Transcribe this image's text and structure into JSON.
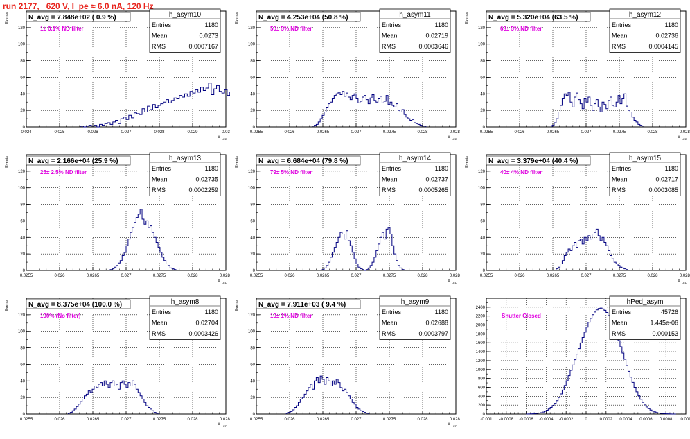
{
  "page": {
    "title": "run 2177,   620 V, I_pe ≈ 6.0 nA, 120 Hz"
  },
  "colors": {
    "title": "#e8231c",
    "histogram": "#000080",
    "annotation": "#e000e0",
    "grid": "#000000"
  },
  "chart_data": [
    {
      "type": "bar",
      "name": "h_asym10",
      "header": "N_avg = 7.848e+02 ( 0.9 %)",
      "annotation": "1± 0.1% ND filter",
      "stats": [
        [
          "Entries",
          "1180"
        ],
        [
          "Mean",
          "0.0273"
        ],
        [
          "RMS",
          "0.0007167"
        ]
      ],
      "ylabel": "Events",
      "xlabel": "A",
      "xlabel_sub": "LED",
      "xlim": [
        0.024,
        0.03
      ],
      "ylim": [
        0,
        140
      ],
      "xticks": [
        0.024,
        0.025,
        0.026,
        0.027,
        0.028,
        0.029,
        0.03
      ],
      "xticklabels": [
        "0.024",
        "0.025",
        "0.026",
        "0.027",
        "0.028",
        "0.029",
        "0.03"
      ],
      "yticks": [
        0,
        20,
        40,
        60,
        80,
        100,
        120
      ],
      "yticklabels": [
        "0",
        "20",
        "40",
        "60",
        "80",
        "100",
        "120"
      ],
      "bins": {
        "start": 0.02564,
        "step": 8e-05,
        "counts": [
          1,
          0,
          1,
          2,
          1,
          2,
          0,
          3,
          2,
          4,
          5,
          3,
          6,
          8,
          4,
          10,
          12,
          9,
          14,
          11,
          17,
          16,
          15,
          22,
          18,
          25,
          21,
          27,
          23,
          26,
          28,
          30,
          33,
          29,
          32,
          35,
          34,
          38,
          36,
          40,
          37,
          43,
          41,
          45,
          42,
          48,
          44,
          47,
          53,
          39,
          46,
          50,
          43,
          41,
          45,
          38,
          42,
          40,
          36,
          39,
          33,
          35,
          30,
          32,
          28,
          26,
          27,
          29,
          22,
          24,
          20,
          18,
          21,
          16,
          14,
          15,
          12,
          10,
          8,
          9,
          6,
          5,
          4,
          3,
          2,
          2,
          1,
          1
        ]
      }
    },
    {
      "type": "bar",
      "name": "h_asym11",
      "header": "N_avg = 4.253e+04 (50.8 %)",
      "annotation": "50± 5% ND filter",
      "stats": [
        [
          "Entries",
          "1180"
        ],
        [
          "Mean",
          "0.02719"
        ],
        [
          "RMS",
          "0.0003646"
        ]
      ],
      "ylabel": "Events",
      "xlabel": "A",
      "xlabel_sub": "LED",
      "xlim": [
        0.0255,
        0.0285
      ],
      "ylim": [
        0,
        140
      ],
      "xticks": [
        0.0255,
        0.026,
        0.0265,
        0.027,
        0.0275,
        0.028,
        0.0285
      ],
      "xticklabels": [
        "0.0255",
        "0.026",
        "0.0265",
        "0.027",
        "0.0275",
        "0.028",
        "0.0285"
      ],
      "yticks": [
        0,
        20,
        40,
        60,
        80,
        100,
        120
      ],
      "yticklabels": [
        "0",
        "20",
        "40",
        "60",
        "80",
        "100",
        "120"
      ],
      "bins": {
        "start": 0.02634,
        "step": 3e-05,
        "counts": [
          1,
          2,
          3,
          6,
          10,
          14,
          18,
          23,
          28,
          30,
          34,
          38,
          40,
          42,
          39,
          43,
          37,
          41,
          36,
          33,
          38,
          40,
          34,
          29,
          31,
          36,
          38,
          33,
          28,
          35,
          39,
          32,
          30,
          34,
          37,
          29,
          31,
          38,
          27,
          30,
          26,
          24,
          28,
          20,
          18,
          21,
          15,
          12,
          10,
          8,
          9,
          5,
          4,
          3,
          2,
          1,
          1
        ]
      }
    },
    {
      "type": "bar",
      "name": "h_asym12",
      "header": "N_avg = 5.320e+04 (63.5 %)",
      "annotation": "63± 5% ND filter",
      "stats": [
        [
          "Entries",
          "1180"
        ],
        [
          "Mean",
          "0.02736"
        ],
        [
          "RMS",
          "0.0004145"
        ]
      ],
      "ylabel": "Events",
      "xlabel": "A",
      "xlabel_sub": "LED",
      "xlim": [
        0.0255,
        0.0285
      ],
      "ylim": [
        0,
        140
      ],
      "xticks": [
        0.0255,
        0.026,
        0.0265,
        0.027,
        0.0275,
        0.028,
        0.0285
      ],
      "xticklabels": [
        "0.0255",
        "0.026",
        "0.0265",
        "0.027",
        "0.0275",
        "0.028",
        "0.0285"
      ],
      "yticks": [
        0,
        20,
        40,
        60,
        80,
        100,
        120
      ],
      "yticklabels": [
        "0",
        "20",
        "40",
        "60",
        "80",
        "100",
        "120"
      ],
      "bins": {
        "start": 0.02649,
        "step": 3e-05,
        "counts": [
          2,
          5,
          10,
          18,
          26,
          34,
          40,
          38,
          42,
          30,
          24,
          36,
          41,
          33,
          28,
          22,
          34,
          30,
          36,
          26,
          20,
          28,
          33,
          24,
          18,
          30,
          27,
          22,
          32,
          36,
          26,
          24,
          30,
          38,
          28,
          34,
          40,
          25,
          20,
          18,
          12,
          8,
          6,
          3,
          2,
          1
        ]
      }
    },
    {
      "type": "bar",
      "name": "h_asym13",
      "header": "N_avg = 2.166e+04 (25.9 %)",
      "annotation": "25± 2.5% ND filter",
      "stats": [
        [
          "Entries",
          "1180"
        ],
        [
          "Mean",
          "0.02735"
        ],
        [
          "RMS",
          "0.0002259"
        ]
      ],
      "ylabel": "Events",
      "xlabel": "A",
      "xlabel_sub": "LED",
      "xlim": [
        0.0255,
        0.0285
      ],
      "ylim": [
        0,
        140
      ],
      "xticks": [
        0.0255,
        0.026,
        0.0265,
        0.027,
        0.0275,
        0.028,
        0.0285
      ],
      "xticklabels": [
        "0.0255",
        "0.026",
        "0.0265",
        "0.027",
        "0.0275",
        "0.028",
        "0.0285"
      ],
      "yticks": [
        0,
        20,
        40,
        60,
        80,
        100,
        120
      ],
      "yticklabels": [
        "0",
        "20",
        "40",
        "60",
        "80",
        "100",
        "120"
      ],
      "bins": {
        "start": 0.02676,
        "step": 3e-05,
        "counts": [
          1,
          2,
          4,
          6,
          9,
          12,
          18,
          22,
          30,
          38,
          46,
          52,
          58,
          64,
          68,
          74,
          62,
          56,
          60,
          52,
          54,
          46,
          40,
          34,
          28,
          22,
          16,
          12,
          8,
          6,
          3,
          2,
          1
        ]
      }
    },
    {
      "type": "bar",
      "name": "h_asym14",
      "header": "N_avg = 6.684e+04 (79.8 %)",
      "annotation": "79± 5% ND filter",
      "stats": [
        [
          "Entries",
          "1180"
        ],
        [
          "Mean",
          "0.02737"
        ],
        [
          "RMS",
          "0.0005265"
        ]
      ],
      "ylabel": "Events",
      "xlabel": "A",
      "xlabel_sub": "LED",
      "xlim": [
        0.0255,
        0.0285
      ],
      "ylim": [
        0,
        140
      ],
      "xticks": [
        0.0255,
        0.026,
        0.0265,
        0.027,
        0.0275,
        0.028,
        0.0285
      ],
      "xticklabels": [
        "0.0255",
        "0.026",
        "0.0265",
        "0.027",
        "0.0275",
        "0.028",
        "0.0285"
      ],
      "yticks": [
        0,
        20,
        40,
        60,
        80,
        100,
        120
      ],
      "yticklabels": [
        "0",
        "20",
        "40",
        "60",
        "80",
        "100",
        "120"
      ],
      "bins": {
        "start": 0.02649,
        "step": 3e-05,
        "counts": [
          1,
          3,
          6,
          10,
          16,
          22,
          28,
          34,
          40,
          46,
          44,
          38,
          48,
          36,
          30,
          22,
          14,
          8,
          4,
          2,
          1,
          0,
          1,
          3,
          6,
          10,
          16,
          24,
          32,
          40,
          46,
          38,
          50,
          52,
          44,
          30,
          20,
          12,
          6,
          3,
          1
        ]
      }
    },
    {
      "type": "bar",
      "name": "h_asym15",
      "header": "N_avg = 3.379e+04 (40.4 %)",
      "annotation": "40± 4% ND filter",
      "stats": [
        [
          "Entries",
          "1180"
        ],
        [
          "Mean",
          "0.02717"
        ],
        [
          "RMS",
          "0.0003085"
        ]
      ],
      "ylabel": "Events",
      "xlabel": "A",
      "xlabel_sub": "LED",
      "xlim": [
        0.0255,
        0.0285
      ],
      "ylim": [
        0,
        140
      ],
      "xticks": [
        0.0255,
        0.026,
        0.0265,
        0.027,
        0.0275,
        0.028,
        0.0285
      ],
      "xticklabels": [
        "0.0255",
        "0.026",
        "0.0265",
        "0.027",
        "0.0275",
        "0.028",
        "0.0285"
      ],
      "yticks": [
        0,
        20,
        40,
        60,
        80,
        100,
        120
      ],
      "yticklabels": [
        "0",
        "20",
        "40",
        "60",
        "80",
        "100",
        "120"
      ],
      "bins": {
        "start": 0.02655,
        "step": 3e-05,
        "counts": [
          2,
          4,
          8,
          12,
          18,
          22,
          26,
          24,
          30,
          34,
          28,
          36,
          38,
          32,
          40,
          36,
          42,
          38,
          44,
          46,
          50,
          42,
          36,
          40,
          34,
          30,
          24,
          18,
          14,
          10,
          8,
          6,
          4,
          3,
          2,
          1
        ]
      }
    },
    {
      "type": "bar",
      "name": "h_asym8",
      "header": "N_avg = 8.375e+04 (100.0 %)",
      "annotation": "100% (No filter)",
      "stats": [
        [
          "Entries",
          "1180"
        ],
        [
          "Mean",
          "0.02704"
        ],
        [
          "RMS",
          "0.0003426"
        ]
      ],
      "ylabel": "Events",
      "xlabel": "A",
      "xlabel_sub": "LED",
      "xlim": [
        0.0255,
        0.0285
      ],
      "ylim": [
        0,
        140
      ],
      "xticks": [
        0.0255,
        0.026,
        0.0265,
        0.027,
        0.0275,
        0.028,
        0.0285
      ],
      "xticklabels": [
        "0.0255",
        "0.026",
        "0.0265",
        "0.027",
        "0.0275",
        "0.028",
        "0.0285"
      ],
      "yticks": [
        0,
        20,
        40,
        60,
        80,
        100,
        120
      ],
      "yticklabels": [
        "0",
        "20",
        "40",
        "60",
        "80",
        "100",
        "120"
      ],
      "bins": {
        "start": 0.02613,
        "step": 3e-05,
        "counts": [
          1,
          2,
          4,
          6,
          9,
          12,
          15,
          18,
          22,
          24,
          28,
          26,
          30,
          34,
          32,
          36,
          38,
          34,
          40,
          36,
          32,
          38,
          40,
          34,
          36,
          30,
          38,
          40,
          36,
          32,
          38,
          34,
          40,
          36,
          30,
          26,
          22,
          18,
          14,
          10,
          8,
          6,
          4,
          2,
          1
        ]
      }
    },
    {
      "type": "bar",
      "name": "h_asym9",
      "header": "N_avg = 7.911e+03 ( 9.4 %)",
      "annotation": "10± 1% ND filter",
      "stats": [
        [
          "Entries",
          "1180"
        ],
        [
          "Mean",
          "0.02688"
        ],
        [
          "RMS",
          "0.0003797"
        ]
      ],
      "ylabel": "Events",
      "xlabel": "A",
      "xlabel_sub": "LED",
      "xlim": [
        0.0255,
        0.0285
      ],
      "ylim": [
        0,
        140
      ],
      "xticks": [
        0.0255,
        0.026,
        0.0265,
        0.027,
        0.0275,
        0.028,
        0.0285
      ],
      "xticklabels": [
        "0.0255",
        "0.026",
        "0.0265",
        "0.027",
        "0.0275",
        "0.028",
        "0.0285"
      ],
      "yticks": [
        0,
        20,
        40,
        60,
        80,
        100,
        120
      ],
      "yticklabels": [
        "0",
        "20",
        "40",
        "60",
        "80",
        "100",
        "120"
      ],
      "bins": {
        "start": 0.02595,
        "step": 3e-05,
        "counts": [
          1,
          2,
          3,
          5,
          8,
          10,
          14,
          18,
          20,
          24,
          28,
          32,
          36,
          30,
          40,
          44,
          38,
          46,
          42,
          36,
          44,
          40,
          34,
          40,
          36,
          42,
          38,
          32,
          28,
          30,
          26,
          22,
          18,
          14,
          12,
          8,
          6,
          4,
          3,
          2,
          1
        ]
      }
    },
    {
      "type": "bar",
      "name": "hPed_asym",
      "header": "",
      "annotation": "Shutter Closed",
      "stats": [
        [
          "Entries",
          "45726"
        ],
        [
          "Mean",
          "1.445e-06"
        ],
        [
          "RMS",
          "0.000153"
        ]
      ],
      "ylabel": "",
      "xlabel": "",
      "xlabel_sub": "",
      "xlim": [
        -0.001,
        0.001
      ],
      "ylim": [
        0,
        2600
      ],
      "xticks": [
        -0.001,
        -0.0008,
        -0.0006,
        -0.0004,
        -0.0002,
        0,
        0.0002,
        0.0004,
        0.0006,
        0.0008,
        0.001
      ],
      "xticklabels": [
        "-0.001",
        "-0.0008",
        "-0.0006",
        "-0.0004",
        "-0.0002",
        "0",
        "0.0002",
        "0.0004",
        "0.0006",
        "0.0008",
        "0.001"
      ],
      "yticks": [
        0,
        200,
        400,
        600,
        800,
        1000,
        1200,
        1400,
        1600,
        1800,
        2000,
        2200,
        2400
      ],
      "yticklabels": [
        "0",
        "200",
        "400",
        "600",
        "800",
        "1000",
        "1200",
        "1400",
        "1600",
        "1800",
        "2000",
        "2200",
        "2400"
      ],
      "bins": {
        "start": -0.0006,
        "step": 2e-05,
        "counts": [
          1,
          2,
          4,
          6,
          10,
          15,
          22,
          32,
          45,
          62,
          85,
          112,
          148,
          190,
          240,
          300,
          372,
          452,
          540,
          640,
          748,
          862,
          980,
          1100,
          1220,
          1345,
          1470,
          1595,
          1720,
          1840,
          1950,
          2060,
          2150,
          2230,
          2290,
          2340,
          2370,
          2380,
          2360,
          2330,
          2280,
          2210,
          2120,
          2020,
          1900,
          1780,
          1650,
          1510,
          1370,
          1230,
          1090,
          960,
          830,
          710,
          600,
          500,
          410,
          330,
          262,
          205,
          158,
          120,
          90,
          66,
          48,
          34,
          24,
          16,
          11,
          7,
          5,
          3,
          2,
          1,
          1
        ]
      }
    }
  ]
}
